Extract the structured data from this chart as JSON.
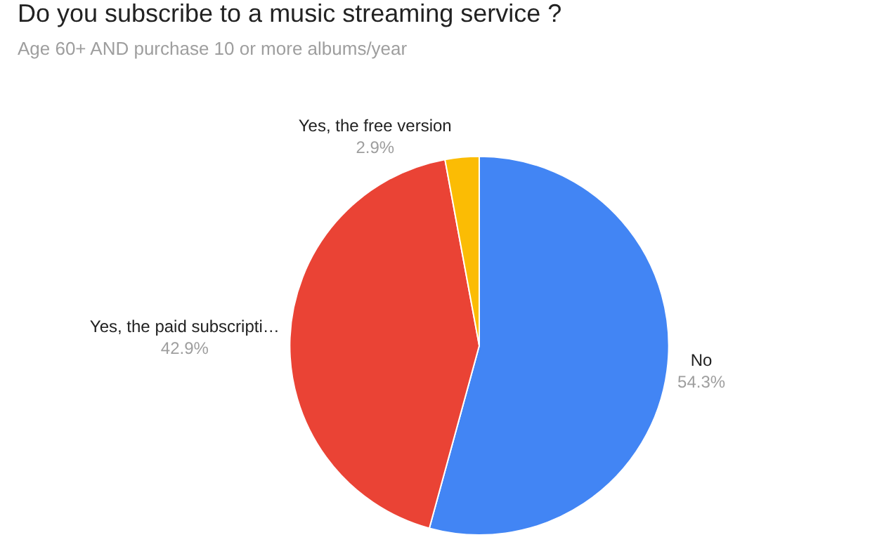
{
  "chart_data": {
    "type": "pie",
    "title": "Do you subscribe to a music streaming service ?",
    "subtitle": "Age 60+ AND purchase 10 or more albums/year",
    "categories": [
      "No",
      "Yes, the paid subscripti…",
      "Yes, the free version"
    ],
    "values": [
      54.3,
      42.9,
      2.9
    ],
    "value_labels": [
      "54.3%",
      "42.9%",
      "2.9%"
    ],
    "colors": [
      "#4285f4",
      "#ea4335",
      "#fbbc04"
    ],
    "legend": false
  }
}
